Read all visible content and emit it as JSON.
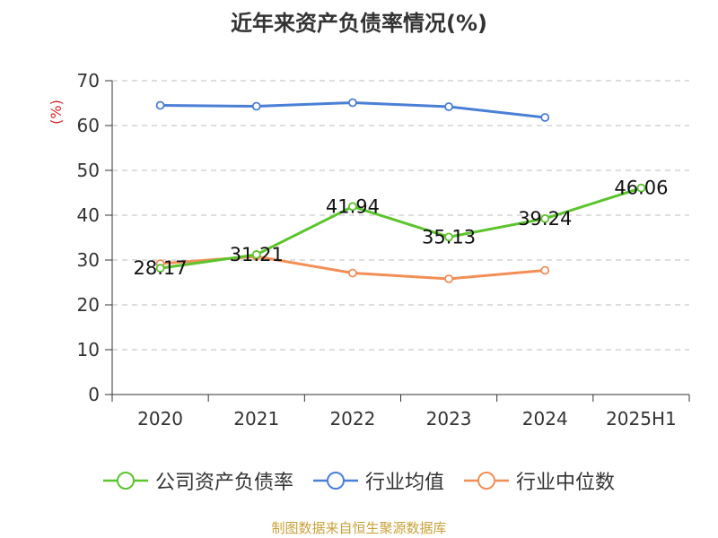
{
  "chart_data": {
    "type": "line",
    "title": "近年来资产负债率情况(%)",
    "ylabel": "(%)",
    "xlabel": "",
    "categories": [
      "2020",
      "2021",
      "2022",
      "2023",
      "2024",
      "2025H1"
    ],
    "ylim": [
      0,
      70
    ],
    "yticks": [
      0,
      10,
      20,
      30,
      40,
      50,
      60,
      70
    ],
    "grid": true,
    "legend_position": "bottom",
    "series": [
      {
        "name": "公司资产负债率",
        "color": "#5cc42c",
        "values": [
          28.17,
          31.21,
          41.94,
          35.13,
          39.24,
          46.06
        ],
        "labels": [
          "28.17",
          "31.21",
          "41.94",
          "35.13",
          "39.24",
          "46.06"
        ]
      },
      {
        "name": "行业均值",
        "color": "#4a7fd6",
        "values": [
          64.5,
          64.3,
          65.1,
          64.2,
          61.8,
          null
        ]
      },
      {
        "name": "行业中位数",
        "color": "#f28e56",
        "values": [
          29.2,
          30.8,
          27.1,
          25.8,
          27.7,
          null
        ]
      }
    ]
  },
  "source": "制图数据来自恒生聚源数据库"
}
